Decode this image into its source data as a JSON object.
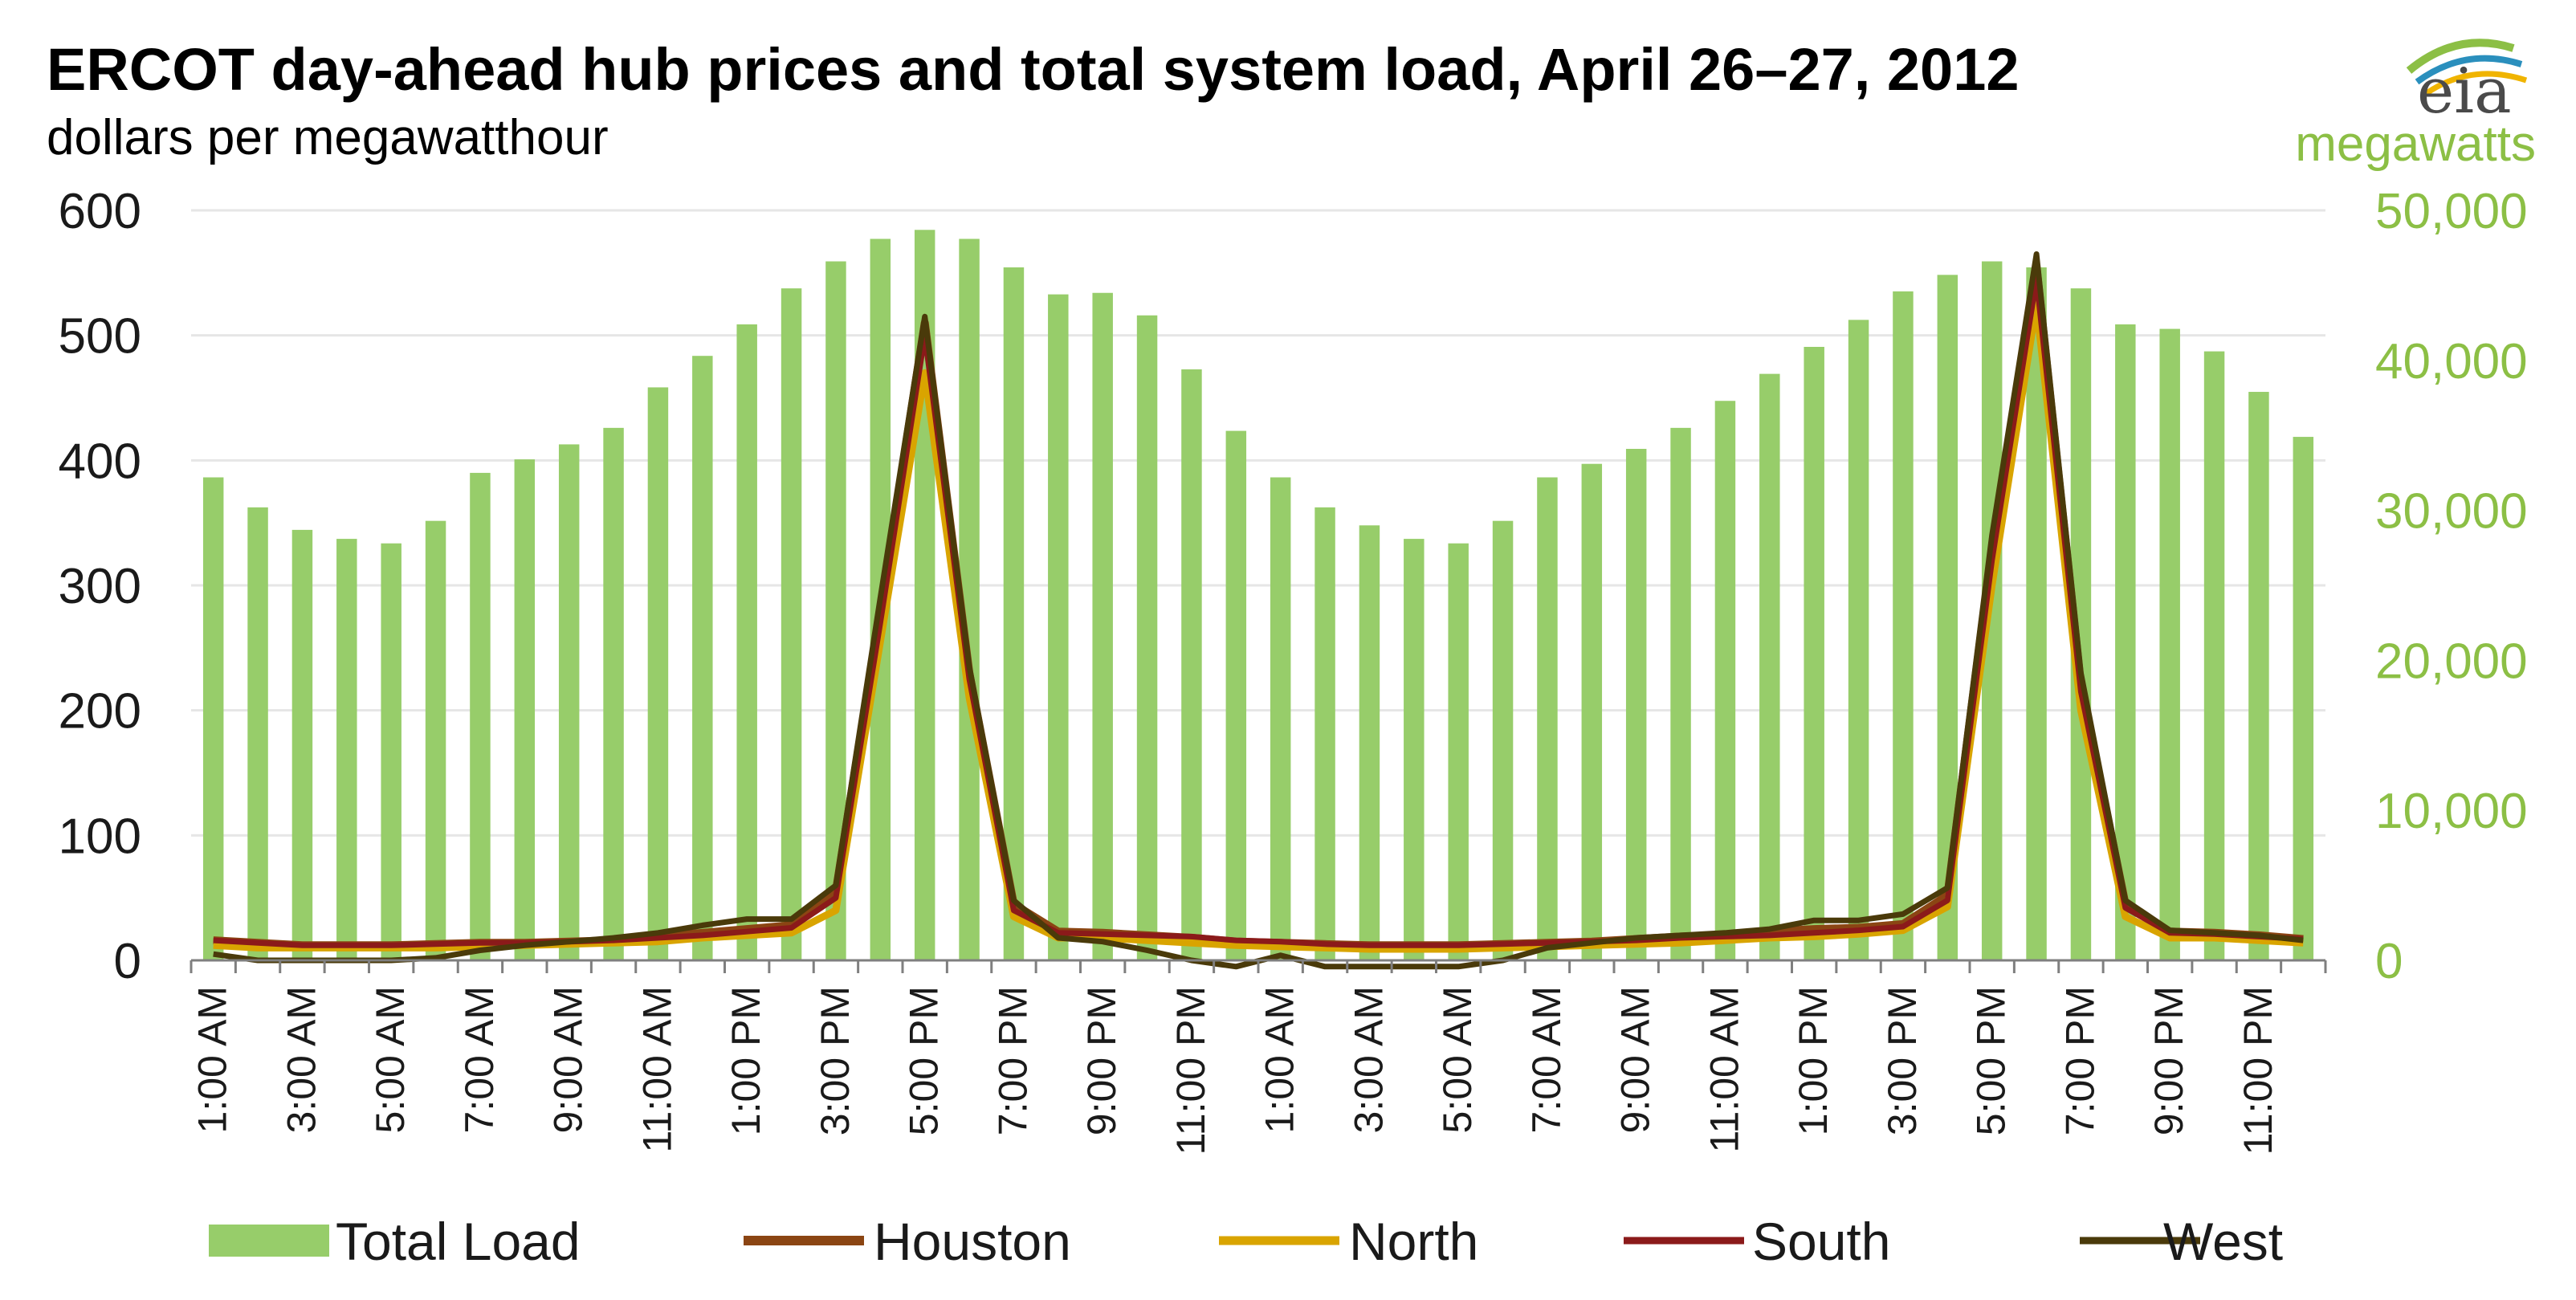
{
  "chart_data": {
    "type": "bar+line",
    "title": "ERCOT day-ahead  hub prices and total system  load, April 26–27, 2012",
    "ylabel_left": "dollars per megawatthour",
    "ylabel_right": "megawatts",
    "logo_text": "eia",
    "ylim_left": [
      0,
      600
    ],
    "yticks_left": [
      "0",
      "100",
      "200",
      "300",
      "400",
      "500",
      "600"
    ],
    "ylim_right": [
      0,
      50000
    ],
    "yticks_right": [
      "0",
      "10,000",
      "20,000",
      "30,000",
      "40,000",
      "50,000"
    ],
    "xtick_labels": [
      "1:00 AM",
      "3:00 AM",
      "5:00 AM",
      "7:00 AM",
      "9:00 AM",
      "11:00 AM",
      "1:00 PM",
      "3:00 PM",
      "5:00 PM",
      "7:00 PM",
      "9:00 PM",
      "11:00 PM",
      "1:00 AM",
      "3:00 AM",
      "5:00 AM",
      "7:00 AM",
      "9:00 AM",
      "11:00 AM",
      "1:00 PM",
      "3:00 PM",
      "5:00 PM",
      "7:00 PM",
      "9:00 PM",
      "11:00 PM"
    ],
    "bars": {
      "name": "Total Load",
      "color": "#97cd6a",
      "values": [
        32200,
        30200,
        28700,
        28100,
        27800,
        29300,
        32500,
        33400,
        34400,
        35500,
        38200,
        40300,
        42400,
        44800,
        46600,
        48100,
        48700,
        48100,
        46200,
        44400,
        44500,
        43000,
        39400,
        35300,
        32200,
        30200,
        29000,
        28100,
        27800,
        29300,
        32200,
        33100,
        34100,
        35500,
        37300,
        39100,
        40900,
        42700,
        44600,
        45700,
        46600,
        46200,
        44800,
        42400,
        42100,
        40600,
        37900,
        34900
      ]
    },
    "series": [
      {
        "name": "Houston",
        "color": "#8b4513",
        "width": 10,
        "values": [
          16,
          14,
          12,
          12,
          12,
          13,
          14,
          14,
          15,
          16,
          19,
          22,
          25,
          28,
          55,
          280,
          510,
          230,
          45,
          23,
          22,
          20,
          18,
          15,
          14,
          13,
          12,
          12,
          12,
          13,
          14,
          15,
          17,
          19,
          20,
          23,
          25,
          26,
          29,
          52,
          330,
          555,
          220,
          45,
          23,
          22,
          20,
          17
        ]
      },
      {
        "name": "North",
        "color": "#d9a400",
        "width": 9,
        "values": [
          12,
          10,
          10,
          10,
          10,
          10,
          11,
          12,
          13,
          14,
          15,
          18,
          20,
          22,
          40,
          255,
          470,
          210,
          35,
          18,
          18,
          16,
          14,
          12,
          11,
          10,
          9,
          9,
          9,
          10,
          11,
          12,
          13,
          14,
          16,
          18,
          19,
          21,
          24,
          43,
          300,
          525,
          200,
          35,
          18,
          18,
          16,
          14
        ]
      },
      {
        "name": "South",
        "color": "#8b1a1a",
        "width": 7,
        "values": [
          16,
          14,
          12,
          12,
          12,
          13,
          14,
          14,
          15,
          16,
          18,
          20,
          23,
          26,
          50,
          270,
          500,
          225,
          40,
          22,
          21,
          20,
          19,
          16,
          15,
          13,
          12,
          12,
          12,
          13,
          14,
          15,
          16,
          18,
          19,
          20,
          22,
          24,
          27,
          48,
          320,
          545,
          215,
          42,
          22,
          21,
          19,
          17
        ]
      },
      {
        "name": "West",
        "color": "#4a3a0a",
        "width": 7,
        "values": [
          5,
          0,
          0,
          0,
          0,
          2,
          8,
          12,
          15,
          18,
          22,
          28,
          33,
          33,
          60,
          290,
          515,
          235,
          48,
          18,
          15,
          8,
          0,
          -5,
          4,
          -5,
          -5,
          -5,
          -5,
          0,
          10,
          14,
          18,
          20,
          22,
          25,
          32,
          32,
          37,
          58,
          340,
          565,
          230,
          48,
          24,
          22,
          20,
          16
        ]
      }
    ],
    "legend": [
      "Total Load",
      "Houston",
      "North",
      "South",
      "West"
    ],
    "legend_position": "bottom",
    "grid": true
  }
}
